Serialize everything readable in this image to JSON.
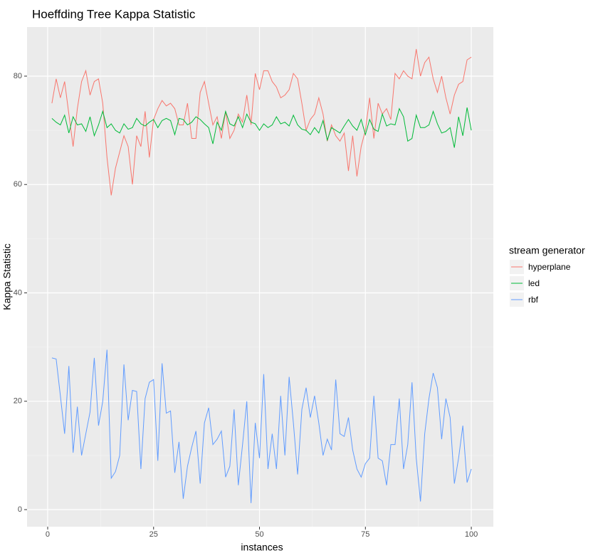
{
  "chart_data": {
    "type": "line",
    "title": "Hoeffding Tree Kappa Statistic",
    "x_label": "instances",
    "y_label": "Kappa Statistic",
    "legend_title": "stream generator",
    "legend_position": "right",
    "grid": true,
    "x": [
      1,
      2,
      3,
      4,
      5,
      6,
      7,
      8,
      9,
      10,
      11,
      12,
      13,
      14,
      15,
      16,
      17,
      18,
      19,
      20,
      21,
      22,
      23,
      24,
      25,
      26,
      27,
      28,
      29,
      30,
      31,
      32,
      33,
      34,
      35,
      36,
      37,
      38,
      39,
      40,
      41,
      42,
      43,
      44,
      45,
      46,
      47,
      48,
      49,
      50,
      51,
      52,
      53,
      54,
      55,
      56,
      57,
      58,
      59,
      60,
      61,
      62,
      63,
      64,
      65,
      66,
      67,
      68,
      69,
      70,
      71,
      72,
      73,
      74,
      75,
      76,
      77,
      78,
      79,
      80,
      81,
      82,
      83,
      84,
      85,
      86,
      87,
      88,
      89,
      90,
      91,
      92,
      93,
      94,
      95,
      96,
      97,
      98,
      99,
      100
    ],
    "series": [
      {
        "name": "hyperplane",
        "color": "#F8766D",
        "values": [
          75,
          79.5,
          76,
          79,
          73,
          67,
          74,
          79,
          81,
          76.5,
          79,
          79.5,
          75,
          65,
          58,
          63,
          66,
          69,
          67,
          60,
          69,
          67,
          73.5,
          65,
          72,
          74,
          75.5,
          74.5,
          75,
          74,
          71,
          71,
          75,
          68.5,
          68.5,
          77,
          79,
          75,
          71,
          72.5,
          68.5,
          73.5,
          68.5,
          70,
          73,
          71.5,
          76.5,
          71,
          80.5,
          77.5,
          81,
          81,
          79,
          78,
          76,
          76.5,
          77.5,
          80.5,
          79.5,
          75,
          70,
          72,
          73,
          76,
          73,
          68,
          71,
          69,
          68,
          69.5,
          62.5,
          69,
          61.5,
          67,
          70,
          76,
          68.5,
          75,
          73,
          74,
          72,
          80.5,
          79.5,
          81,
          80,
          79.5,
          85,
          80,
          82.5,
          83.5,
          79.5,
          77,
          80,
          76,
          73,
          76.5,
          78.5,
          79,
          83,
          83.5
        ]
      },
      {
        "name": "led",
        "color": "#00BA38",
        "values": [
          72.2,
          71.5,
          71,
          72.8,
          69.5,
          72.5,
          71,
          71.2,
          69.8,
          72.5,
          69,
          71,
          73.5,
          70.5,
          71.2,
          70,
          69.5,
          71.2,
          70.2,
          70.5,
          72.2,
          71.2,
          70.8,
          71.5,
          72,
          70.5,
          71.8,
          72.2,
          71.8,
          69.2,
          72.2,
          72,
          71,
          71.5,
          72.5,
          72,
          71.2,
          70.5,
          67.5,
          71.5,
          70,
          73.5,
          71.2,
          70.8,
          72.5,
          70.5,
          73,
          71.5,
          71.2,
          70,
          71.2,
          70.5,
          71,
          72.5,
          71.2,
          71.5,
          70.8,
          72.8,
          71,
          70.2,
          70,
          69.2,
          70.5,
          69.5,
          71.8,
          68.2,
          70.5,
          70,
          69.5,
          70.8,
          72,
          70.8,
          70,
          72,
          69.2,
          72,
          70.2,
          69.8,
          73,
          70.8,
          71.2,
          71,
          74,
          72.5,
          68,
          68.5,
          72.8,
          70.5,
          70.5,
          71,
          73.5,
          71.2,
          69.5,
          69.8,
          70.5,
          66.8,
          72.5,
          69,
          74.2,
          70
        ]
      },
      {
        "name": "rbf",
        "color": "#619CFF",
        "values": [
          28,
          27.8,
          21,
          14,
          26.5,
          10.5,
          19,
          10,
          14,
          18,
          28,
          15.5,
          20,
          29.5,
          5.8,
          7,
          10,
          26.8,
          16.5,
          22,
          21.8,
          7.5,
          20.5,
          23.5,
          24,
          9,
          27,
          17.8,
          18.2,
          6.8,
          12.5,
          2,
          8,
          11.5,
          14.5,
          4.8,
          16,
          18.8,
          12,
          13,
          14.5,
          6,
          8,
          18.5,
          4.5,
          12,
          20,
          1.2,
          16,
          9.5,
          25,
          7.5,
          14,
          7.5,
          21,
          10,
          24.5,
          16,
          6.5,
          18.5,
          22.5,
          17,
          21,
          16,
          10,
          13,
          11,
          24,
          14,
          13.5,
          17,
          11,
          7.5,
          6,
          8.5,
          9.5,
          21,
          9.5,
          9,
          4.5,
          12,
          12,
          20.5,
          7.5,
          12,
          23.5,
          9.5,
          1.5,
          14,
          20.5,
          25.2,
          22.5,
          13,
          20.5,
          17,
          4.8,
          9.5,
          15.5,
          5,
          7.5
        ]
      }
    ],
    "xlim": [
      -4.87,
      105.2
    ],
    "xticks": [
      0,
      25,
      50,
      75,
      100
    ],
    "ylim": [
      -3.15,
      89.06
    ],
    "yticks": [
      0,
      20,
      40,
      60,
      80
    ]
  }
}
